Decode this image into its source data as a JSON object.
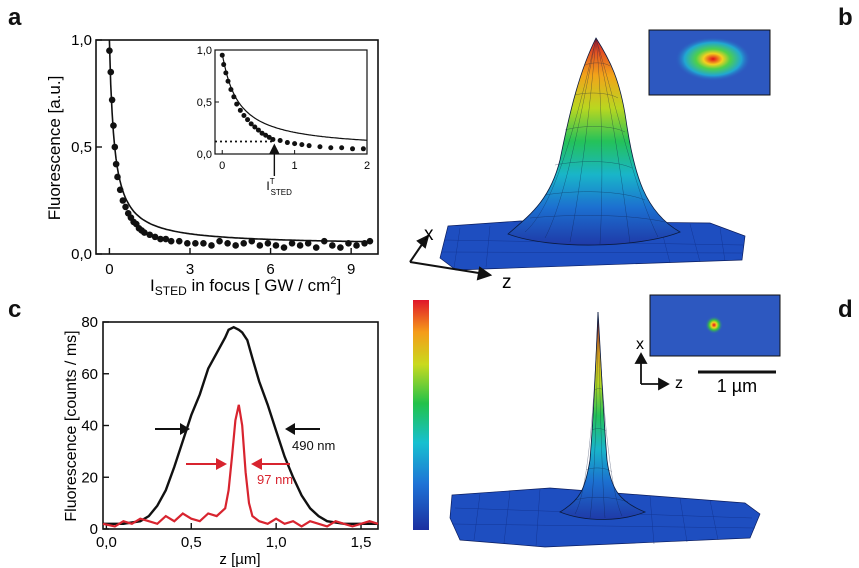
{
  "panels": {
    "a": "a",
    "b": "b",
    "c": "c",
    "d": "d"
  },
  "chart_data": [
    {
      "panel": "a",
      "type": "scatter",
      "ylabel": "Fluorescence [a.u.]",
      "xlabel_main": "I",
      "xlabel_sub": "STED",
      "xlabel_rest": " in focus [ GW / cm",
      "xlabel_sup": "2",
      "xlabel_end": "]",
      "xticks": [
        "0",
        "3",
        "6",
        "9"
      ],
      "yticks": [
        "0,0",
        "0,5",
        "1,0"
      ],
      "xlim": [
        -0.5,
        10
      ],
      "ylim": [
        0,
        1
      ],
      "x": [
        0.0,
        0.05,
        0.1,
        0.15,
        0.2,
        0.25,
        0.3,
        0.4,
        0.5,
        0.6,
        0.7,
        0.8,
        0.9,
        1.0,
        1.1,
        1.2,
        1.3,
        1.5,
        1.7,
        1.9,
        2.1,
        2.3,
        2.6,
        2.9,
        3.2,
        3.5,
        3.8,
        4.1,
        4.4,
        4.7,
        5.0,
        5.3,
        5.6,
        5.9,
        6.2,
        6.5,
        6.8,
        7.1,
        7.4,
        7.7,
        8.0,
        8.3,
        8.6,
        8.9,
        9.2,
        9.5,
        9.7
      ],
      "y": [
        0.95,
        0.85,
        0.72,
        0.6,
        0.5,
        0.42,
        0.36,
        0.3,
        0.25,
        0.22,
        0.19,
        0.17,
        0.15,
        0.14,
        0.12,
        0.11,
        0.1,
        0.09,
        0.08,
        0.07,
        0.07,
        0.06,
        0.06,
        0.05,
        0.05,
        0.05,
        0.04,
        0.06,
        0.05,
        0.04,
        0.05,
        0.06,
        0.04,
        0.05,
        0.04,
        0.03,
        0.05,
        0.04,
        0.05,
        0.03,
        0.06,
        0.04,
        0.03,
        0.05,
        0.04,
        0.05,
        0.06
      ],
      "inset": {
        "xticks": [
          "0",
          "1",
          "2"
        ],
        "yticks": [
          "0,0",
          "0,5",
          "1,0"
        ],
        "xlim": [
          -0.1,
          2
        ],
        "ylim": [
          0,
          1
        ],
        "threshold_y": 0.12,
        "threshold_label_main": "I",
        "threshold_label_sup": "T",
        "threshold_label_sub": "STED",
        "x": [
          0.0,
          0.02,
          0.05,
          0.08,
          0.12,
          0.16,
          0.2,
          0.25,
          0.3,
          0.35,
          0.4,
          0.45,
          0.5,
          0.55,
          0.6,
          0.65,
          0.7,
          0.8,
          0.9,
          1.0,
          1.1,
          1.2,
          1.35,
          1.5,
          1.65,
          1.8,
          1.95
        ],
        "y": [
          0.95,
          0.86,
          0.78,
          0.7,
          0.62,
          0.55,
          0.48,
          0.42,
          0.37,
          0.33,
          0.29,
          0.26,
          0.23,
          0.2,
          0.18,
          0.16,
          0.14,
          0.13,
          0.11,
          0.1,
          0.09,
          0.08,
          0.07,
          0.06,
          0.06,
          0.05,
          0.05
        ]
      }
    },
    {
      "panel": "c",
      "type": "line",
      "ylabel": "Fluorescence [counts / ms]",
      "xlabel": "z [µm]",
      "xticks": [
        "0,0",
        "0,5",
        "1,0",
        "1,5"
      ],
      "yticks": [
        "0",
        "20",
        "40",
        "60",
        "80"
      ],
      "xlim": [
        -0.02,
        1.6
      ],
      "ylim": [
        0,
        80
      ],
      "series": [
        {
          "color": "#111111",
          "x": [
            -0.02,
            0.1,
            0.2,
            0.25,
            0.3,
            0.35,
            0.4,
            0.45,
            0.5,
            0.55,
            0.6,
            0.65,
            0.7,
            0.72,
            0.75,
            0.78,
            0.8,
            0.83,
            0.86,
            0.9,
            0.95,
            1.0,
            1.05,
            1.1,
            1.15,
            1.2,
            1.25,
            1.3,
            1.4,
            1.5,
            1.6
          ],
          "y": [
            2,
            2,
            3,
            5,
            9,
            15,
            24,
            34,
            44,
            52,
            62,
            68,
            74,
            77,
            78,
            77,
            76,
            73,
            66,
            57,
            48,
            38,
            28,
            20,
            13,
            8,
            5,
            3,
            2,
            2,
            2
          ],
          "label": "490 nm"
        },
        {
          "color": "#d8242f",
          "x": [
            -0.02,
            0.05,
            0.1,
            0.15,
            0.2,
            0.25,
            0.3,
            0.35,
            0.4,
            0.45,
            0.5,
            0.55,
            0.6,
            0.65,
            0.7,
            0.72,
            0.74,
            0.76,
            0.78,
            0.8,
            0.82,
            0.84,
            0.86,
            0.9,
            0.95,
            1.0,
            1.05,
            1.1,
            1.15,
            1.2,
            1.25,
            1.3,
            1.35,
            1.4,
            1.45,
            1.5,
            1.55,
            1.6
          ],
          "y": [
            2,
            1,
            3,
            2,
            4,
            3,
            2,
            5,
            3,
            6,
            4,
            3,
            6,
            5,
            8,
            15,
            28,
            42,
            48,
            40,
            22,
            10,
            5,
            3,
            2,
            4,
            2,
            3,
            1,
            3,
            2,
            1,
            3,
            2,
            1,
            2,
            3,
            2
          ],
          "label": "97 nm"
        }
      ]
    }
  ],
  "inset_b": {
    "axis_x": "x",
    "axis_z": "z"
  },
  "inset_d": {
    "axis_x": "x",
    "axis_z": "z",
    "scalebar": "1 µm"
  },
  "surface_b_axes": {
    "x": "x",
    "z": "z"
  },
  "colors": {
    "red": "#d8242f",
    "black": "#111111",
    "bg_blue": "#2a4fb8"
  }
}
